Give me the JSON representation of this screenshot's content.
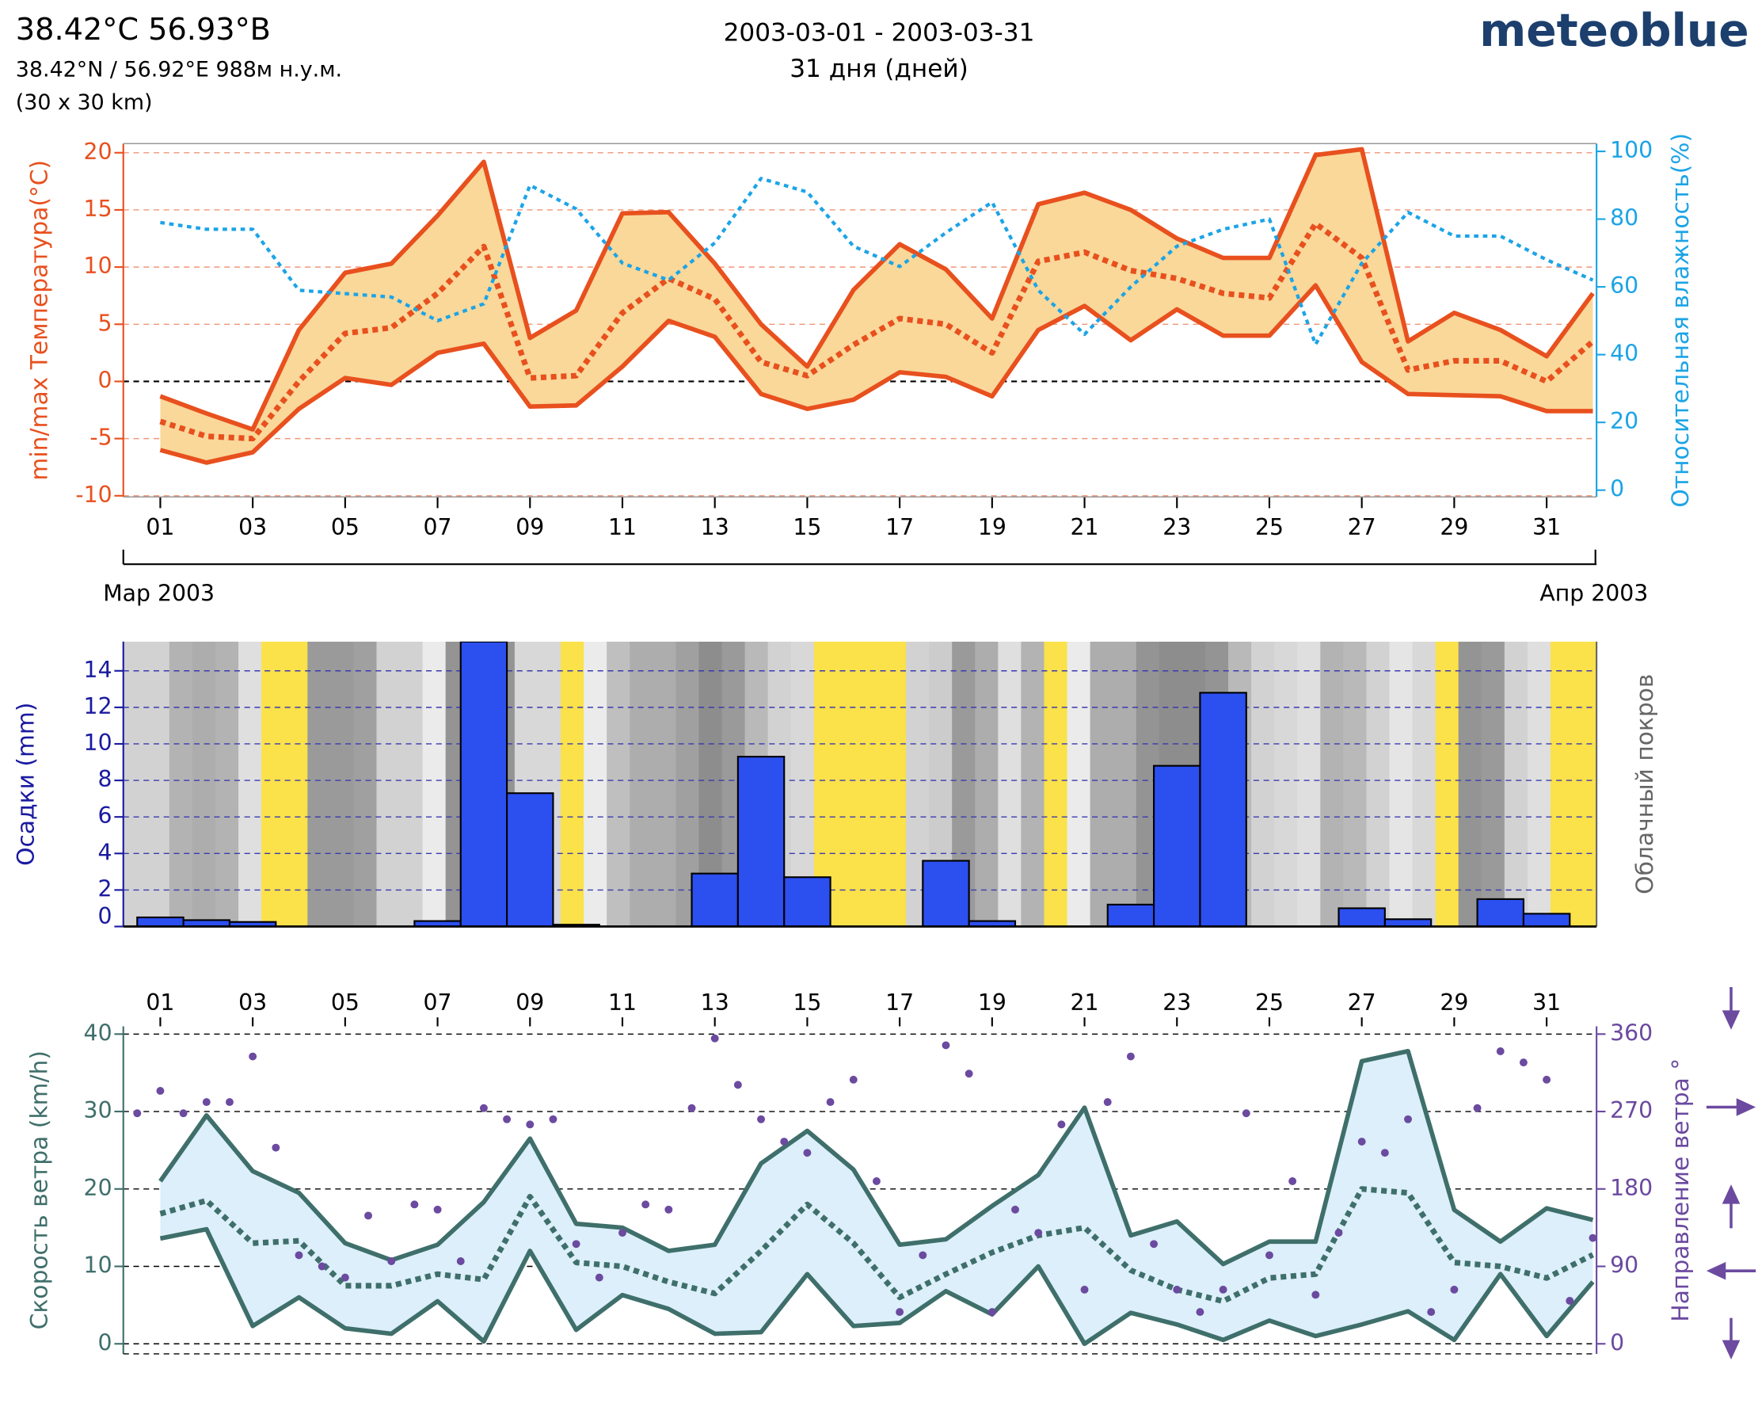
{
  "header": {
    "title": "38.42°C 56.93°B",
    "coords": "38.42°N / 56.92°E   988м н.у.м.",
    "resolution": "(30 x 30 km)",
    "period": "2003-03-01 - 2003-03-31",
    "days": "31 дня (дней)",
    "brand": "meteoblue"
  },
  "chart_data": [
    {
      "type": "line",
      "ylabel": "min/max Температура(°C)",
      "y2label": "Относительная влажность(%)",
      "month_labels": [
        "Мар 2003",
        "Апр 2003"
      ],
      "x": [
        1,
        2,
        3,
        4,
        5,
        6,
        7,
        8,
        9,
        10,
        11,
        12,
        13,
        14,
        15,
        16,
        17,
        18,
        19,
        20,
        21,
        22,
        23,
        24,
        25,
        26,
        27,
        28,
        29,
        30,
        31,
        32
      ],
      "xlim": [
        0.2,
        32.08
      ],
      "xticks": [
        {
          "value": 1,
          "label": "01"
        },
        {
          "value": 3,
          "label": "03"
        },
        {
          "value": 5,
          "label": "05"
        },
        {
          "value": 7,
          "label": "07"
        },
        {
          "value": 9,
          "label": "09"
        },
        {
          "value": 11,
          "label": "11"
        },
        {
          "value": 13,
          "label": "13"
        },
        {
          "value": 15,
          "label": "15"
        },
        {
          "value": 17,
          "label": "17"
        },
        {
          "value": 19,
          "label": "19"
        },
        {
          "value": 21,
          "label": "21"
        },
        {
          "value": 23,
          "label": "23"
        },
        {
          "value": 25,
          "label": "25"
        },
        {
          "value": 27,
          "label": "27"
        },
        {
          "value": 29,
          "label": "29"
        },
        {
          "value": 31,
          "label": "31"
        }
      ],
      "ylim": [
        -10.1,
        20.8
      ],
      "yticks": [
        -10,
        -5,
        0,
        5,
        10,
        15,
        20
      ],
      "y2lim": [
        -2,
        102.3
      ],
      "y2ticks": [
        0,
        20,
        40,
        60,
        80,
        100
      ],
      "grid": true,
      "grid_color": "#e8501e",
      "band_color": "#f9d89a",
      "series": [
        {
          "color": "#e8501e",
          "values": [
            -1.3,
            -2.8,
            -4.2,
            4.5,
            9.5,
            10.3,
            14.5,
            19.2,
            3.8,
            6.2,
            14.7,
            14.8,
            10.3,
            5,
            1.3,
            8,
            12,
            9.8,
            5.5,
            15.5,
            16.5,
            15,
            12.5,
            10.8,
            10.8,
            19.8,
            20.3,
            3.5,
            6,
            4.5,
            2.2,
            7.7
          ]
        },
        {
          "color": "#e8501e",
          "style": "dotted",
          "values": [
            -3.5,
            -4.8,
            -5,
            0,
            4.2,
            4.7,
            7.7,
            11.8,
            0.3,
            0.5,
            6,
            9,
            7.2,
            1.7,
            0.5,
            3.2,
            5.5,
            5,
            2.5,
            10.5,
            11.3,
            9.7,
            9,
            7.7,
            7.3,
            13.8,
            10.8,
            1,
            1.8,
            1.8,
            0,
            3.5
          ]
        },
        {
          "color": "#e8501e",
          "values": [
            -6,
            -7.1,
            -6.2,
            -2.4,
            0.3,
            -0.3,
            2.5,
            3.3,
            -2.2,
            -2.1,
            1.3,
            5.3,
            3.9,
            -1.1,
            -2.4,
            -1.6,
            0.8,
            0.4,
            -1.3,
            4.5,
            6.6,
            3.6,
            6.3,
            4,
            4,
            8.4,
            1.7,
            -1.1,
            -1.2,
            -1.3,
            -2.6,
            -2.6
          ]
        },
        {
          "color": "#1ca4e6",
          "style": "dotted",
          "axis": "y2",
          "values": [
            79,
            77,
            77,
            59,
            58,
            57,
            50,
            55,
            90,
            83,
            67,
            62,
            73,
            92,
            88,
            72,
            66,
            76,
            85,
            59,
            46,
            60,
            72,
            77,
            80,
            43,
            67,
            82,
            75,
            75,
            68,
            62
          ]
        }
      ]
    },
    {
      "type": "bar",
      "ylabel": "Осадки (mm)",
      "y2label": "Облачный покров",
      "x": [
        1,
        2,
        3,
        4,
        5,
        6,
        7,
        8,
        9,
        10,
        11,
        12,
        13,
        14,
        15,
        16,
        17,
        18,
        19,
        20,
        21,
        22,
        23,
        24,
        25,
        26,
        27,
        28,
        29,
        30,
        31,
        32
      ],
      "xlim": [
        0.2,
        32.08
      ],
      "ylim": [
        0,
        15.6
      ],
      "yticks": [
        0,
        2,
        4,
        6,
        8,
        10,
        12,
        14
      ],
      "grid": true,
      "grid_color": "#3a3ab0",
      "color": "#2c4ff0",
      "values": [
        0.5,
        0.35,
        0.25,
        0,
        0,
        0,
        0.3,
        15.6,
        7.3,
        0.1,
        0,
        0,
        2.9,
        9.3,
        2.7,
        0,
        0,
        3.6,
        0.3,
        0,
        0,
        1.2,
        8.8,
        12.8,
        0,
        0,
        1,
        0.4,
        0,
        1.5,
        0.7,
        0
      ],
      "cloud_cover": [
        30,
        30,
        55,
        60,
        55,
        20,
        0,
        5,
        75,
        75,
        70,
        30,
        30,
        10,
        80,
        85,
        80,
        25,
        25,
        0,
        10,
        45,
        60,
        60,
        70,
        85,
        75,
        50,
        30,
        25,
        0,
        5,
        0,
        0,
        30,
        35,
        75,
        60,
        20,
        55,
        0,
        10,
        60,
        60,
        80,
        85,
        85,
        80,
        50,
        30,
        25,
        20,
        55,
        50,
        30,
        15,
        25,
        5,
        80,
        75,
        30,
        20,
        0,
        5
      ]
    },
    {
      "type": "line",
      "ylabel": "Скорость ветра (km/h)",
      "y2label": "Направление ветра °",
      "x": [
        1,
        2,
        3,
        4,
        5,
        6,
        7,
        8,
        9,
        10,
        11,
        12,
        13,
        14,
        15,
        16,
        17,
        18,
        19,
        20,
        21,
        22,
        23,
        24,
        25,
        26,
        27,
        28,
        29,
        30,
        31,
        32
      ],
      "xlim": [
        0.2,
        32.08
      ],
      "xticks": [
        {
          "value": 1,
          "label": "01"
        },
        {
          "value": 3,
          "label": "03"
        },
        {
          "value": 5,
          "label": "05"
        },
        {
          "value": 7,
          "label": "07"
        },
        {
          "value": 9,
          "label": "09"
        },
        {
          "value": 11,
          "label": "11"
        },
        {
          "value": 13,
          "label": "13"
        },
        {
          "value": 15,
          "label": "15"
        },
        {
          "value": 17,
          "label": "17"
        },
        {
          "value": 19,
          "label": "19"
        },
        {
          "value": 21,
          "label": "21"
        },
        {
          "value": 23,
          "label": "23"
        },
        {
          "value": 25,
          "label": "25"
        },
        {
          "value": 27,
          "label": "27"
        },
        {
          "value": 29,
          "label": "29"
        },
        {
          "value": 31,
          "label": "31"
        }
      ],
      "ylim": [
        -1.3,
        41
      ],
      "yticks": [
        0,
        10,
        20,
        30,
        40
      ],
      "y2lim": [
        -11.7,
        369
      ],
      "y2ticks": [
        0,
        90,
        180,
        270,
        360
      ],
      "grid": true,
      "grid_color": "#000000",
      "band_color": "#dceffa",
      "series": [
        {
          "color": "#3f6f6b",
          "values": [
            21,
            29.5,
            22.3,
            19.5,
            13,
            10.8,
            12.8,
            18.3,
            26.5,
            15.5,
            15,
            12,
            12.8,
            23.3,
            27.5,
            22.5,
            12.8,
            13.5,
            17.8,
            21.8,
            30.5,
            14,
            15.8,
            10.3,
            13.2,
            13.2,
            36.5,
            37.8,
            17.3,
            13.2,
            17.5,
            16
          ]
        },
        {
          "color": "#3f6f6b",
          "style": "dotted",
          "values": [
            16.8,
            18.5,
            13,
            13.3,
            7.5,
            7.5,
            9,
            8.3,
            19,
            10.5,
            10,
            8,
            6.5,
            12,
            18,
            13,
            6,
            9,
            11.8,
            14,
            15,
            9.5,
            7,
            5.5,
            8.5,
            9,
            20,
            19.5,
            10.5,
            10,
            8.5,
            11.5
          ]
        },
        {
          "color": "#3f6f6b",
          "values": [
            13.6,
            14.8,
            2.3,
            6,
            2,
            1.3,
            5.5,
            0.3,
            12,
            1.8,
            6.3,
            4.5,
            1.3,
            1.5,
            9,
            2.3,
            2.7,
            6.8,
            3.8,
            10,
            0,
            4,
            2.5,
            0.5,
            3,
            1,
            2.5,
            4.2,
            0.5,
            9,
            1,
            8
          ]
        }
      ],
      "direction": {
        "color": "#6b4aa0",
        "axis": "y2",
        "x": [
          0.5,
          1,
          1.5,
          2,
          2.5,
          3,
          3.5,
          4,
          4.5,
          5,
          5.5,
          6,
          6.5,
          7,
          7.5,
          8,
          8.5,
          9,
          9.5,
          10,
          10.5,
          11,
          11.5,
          12,
          12.5,
          13,
          13.5,
          14,
          14.5,
          15,
          15.5,
          16,
          16.5,
          17,
          17.5,
          18,
          18.5,
          19,
          19.5,
          20,
          20.5,
          21,
          21.5,
          22,
          22.5,
          23,
          23.5,
          24,
          24.5,
          25,
          25.5,
          26,
          26.5,
          27,
          27.5,
          28,
          28.5,
          29,
          29.5,
          30,
          30.5,
          31,
          31.5,
          32
        ],
        "values": [
          268,
          294,
          268,
          281,
          281,
          334,
          228,
          103,
          90,
          77,
          149,
          96,
          162,
          156,
          96,
          274,
          261,
          255,
          261,
          116,
          77,
          129,
          162,
          156,
          274,
          355,
          301,
          261,
          235,
          222,
          281,
          307,
          189,
          37,
          103,
          347,
          314,
          37,
          156,
          129,
          255,
          63,
          281,
          334,
          116,
          63,
          37,
          63,
          268,
          103,
          189,
          57,
          129,
          235,
          222,
          261,
          37,
          63,
          274,
          340,
          327,
          307,
          50,
          123
        ]
      }
    }
  ]
}
